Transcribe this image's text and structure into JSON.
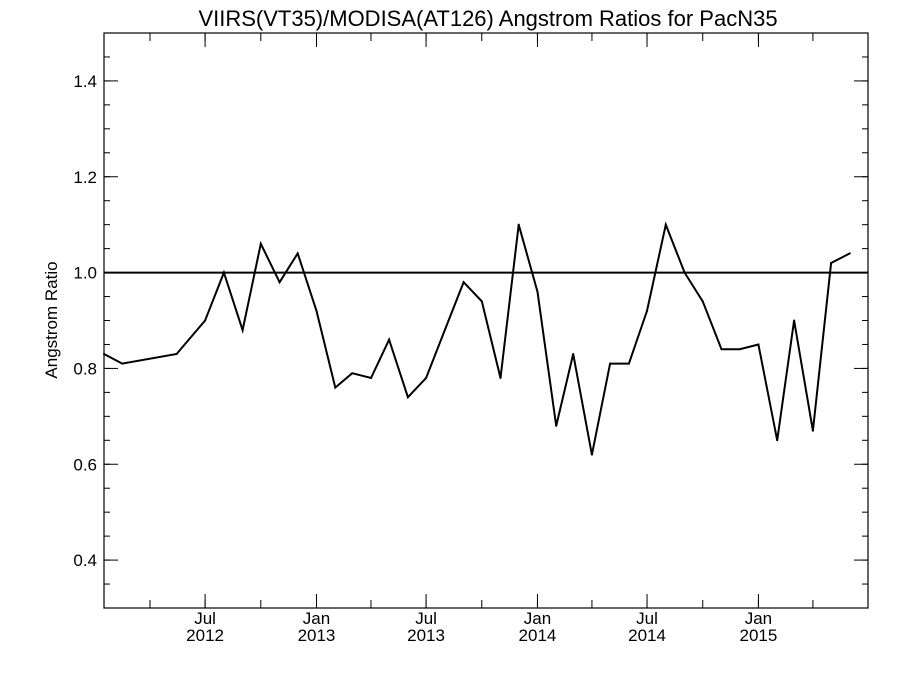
{
  "chart_data": {
    "type": "line",
    "title": "VIIRS(VT35)/MODISA(AT126)  Angstrom Ratios for PacN35",
    "xlabel": "",
    "ylabel": "Angstrom Ratio",
    "ylim": [
      0.3,
      1.5
    ],
    "xlim": [
      "2012-01-16",
      "2015-07-01"
    ],
    "yticks": [
      0.4,
      0.6,
      0.8,
      1.0,
      1.2,
      1.4
    ],
    "ytick_labels": [
      "0.4",
      "0.6",
      "0.8",
      "1.0",
      "1.2",
      "1.4"
    ],
    "xticks": [
      {
        "date": "2012-07-01",
        "month": "Jul",
        "year": "2012"
      },
      {
        "date": "2013-01-01",
        "month": "Jan",
        "year": "2013"
      },
      {
        "date": "2013-07-01",
        "month": "Jul",
        "year": "2013"
      },
      {
        "date": "2014-01-01",
        "month": "Jan",
        "year": "2014"
      },
      {
        "date": "2014-07-01",
        "month": "Jul",
        "year": "2014"
      },
      {
        "date": "2015-01-01",
        "month": "Jan",
        "year": "2015"
      }
    ],
    "reference_line": {
      "y": 1.0
    },
    "grid": false,
    "line_color": "#000000",
    "series": [
      {
        "x": [
          "2012-01-16",
          "2012-02-15",
          "2012-05-15",
          "2012-07-01",
          "2012-08-01",
          "2012-09-01",
          "2012-10-01",
          "2012-11-01",
          "2012-12-01",
          "2013-01-01",
          "2013-02-01",
          "2013-03-01",
          "2013-04-01",
          "2013-05-01",
          "2013-06-01",
          "2013-07-01",
          "2013-08-01",
          "2013-09-01",
          "2013-10-01",
          "2013-11-01",
          "2013-12-01",
          "2014-01-01",
          "2014-02-01",
          "2014-03-01",
          "2014-04-01",
          "2014-05-01",
          "2014-06-01",
          "2014-07-01",
          "2014-08-01",
          "2014-09-01",
          "2014-10-01",
          "2014-11-01",
          "2014-12-01",
          "2015-01-01",
          "2015-02-01",
          "2015-03-01",
          "2015-04-01",
          "2015-05-01",
          "2015-06-01"
        ],
        "y": [
          0.83,
          0.81,
          0.83,
          0.9,
          1.0,
          0.88,
          1.06,
          0.98,
          1.04,
          0.92,
          0.76,
          0.79,
          0.78,
          0.86,
          0.74,
          0.78,
          0.88,
          0.98,
          0.94,
          0.78,
          1.1,
          0.96,
          0.68,
          0.83,
          0.62,
          0.81,
          0.81,
          0.92,
          1.1,
          1.0,
          0.94,
          0.84,
          0.84,
          0.85,
          0.65,
          0.9,
          0.67,
          1.02,
          1.04
        ]
      }
    ]
  }
}
